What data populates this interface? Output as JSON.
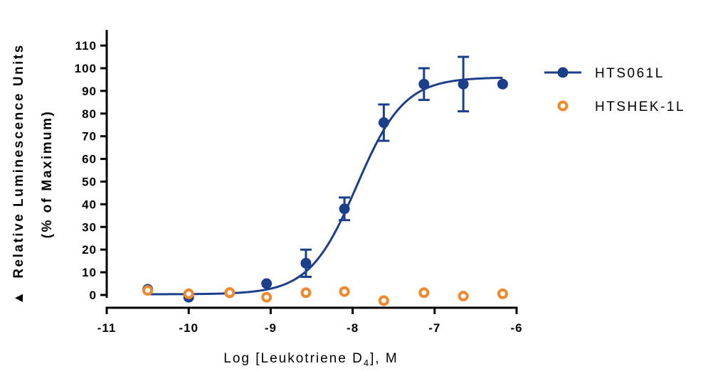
{
  "chart_data": {
    "type": "scatter",
    "title": "",
    "xlabel": {
      "prefix": "Log [Leukotriene D",
      "subscript": "4",
      "suffix": "], M"
    },
    "ylabel": {
      "marker": "▲",
      "line1": "Relative Luminescence Units",
      "line2": "(% of Maximum)"
    },
    "xlim": [
      -11,
      -6
    ],
    "ylim": [
      -5,
      115
    ],
    "xticks": [
      -11,
      -10,
      -9,
      -8,
      -7,
      -6
    ],
    "xtick_labels": [
      "-11",
      "-10",
      "-9",
      "-8",
      "-7",
      "-6"
    ],
    "yticks": [
      0,
      10,
      20,
      30,
      40,
      50,
      60,
      70,
      80,
      90,
      100,
      110
    ],
    "ytick_labels": [
      "0",
      "10",
      "20",
      "30",
      "40",
      "50",
      "60",
      "70",
      "80",
      "90",
      "100",
      "110"
    ],
    "grid": false,
    "legend_position": "right",
    "series": [
      {
        "name": "HTS061L",
        "color": "#1b3f8b",
        "marker": "filled-circle",
        "x": [
          -10.5,
          -10.0,
          -9.5,
          -9.05,
          -8.57,
          -8.1,
          -7.62,
          -7.13,
          -6.65,
          -6.17
        ],
        "y": [
          2.5,
          -1.0,
          1.0,
          5.0,
          14.0,
          38.0,
          76.0,
          93.0,
          93.0,
          93.0
        ],
        "err": [
          0,
          0,
          0,
          0,
          6.0,
          5.0,
          8.0,
          7.0,
          12.0,
          0
        ],
        "fit": {
          "model": "sigmoidal dose-response",
          "bottom": 0.3,
          "top": 96.0,
          "logEC50": -7.95,
          "hill": 1.5
        }
      },
      {
        "name": "HTSHEK-1L",
        "color": "#f0892e",
        "marker": "open-circle",
        "x": [
          -10.5,
          -10.0,
          -9.5,
          -9.05,
          -8.57,
          -8.1,
          -7.62,
          -7.13,
          -6.65,
          -6.17
        ],
        "y": [
          2.0,
          0.5,
          1.0,
          -1.0,
          1.0,
          1.5,
          -2.5,
          1.0,
          -0.5,
          0.5
        ]
      }
    ]
  }
}
